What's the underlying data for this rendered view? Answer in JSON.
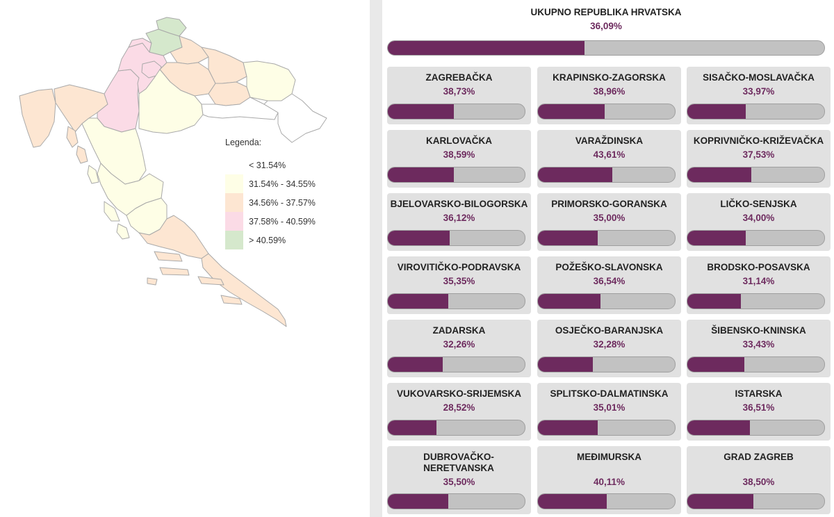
{
  "colors": {
    "accent": "#6d2a5e",
    "bar_track": "#c2c2c2",
    "card_bg": "#e1e1e1",
    "legend": [
      "#ffffff",
      "#fefee6",
      "#fde6d2",
      "#fbdbe6",
      "#d5e8cc"
    ]
  },
  "legend": {
    "title": "Legenda:",
    "items": [
      {
        "label": "< 31.54%",
        "color": "#ffffff"
      },
      {
        "label": "31.54% - 34.55%",
        "color": "#fefee6"
      },
      {
        "label": "34.56% - 37.57%",
        "color": "#fde6d2"
      },
      {
        "label": "37.58% - 40.59%",
        "color": "#fbdbe6"
      },
      {
        "label": "> 40.59%",
        "color": "#d5e8cc"
      }
    ]
  },
  "total": {
    "name": "UKUPNO REPUBLIKA HRVATSKA",
    "value": "36,09%",
    "percent": 36.09
  },
  "counties": [
    {
      "name": "ZAGREBAČKA",
      "value": "38,73%",
      "percent": 38.73
    },
    {
      "name": "KRAPINSKO-ZAGORSKA",
      "value": "38,96%",
      "percent": 38.96
    },
    {
      "name": "SISAČKO-MOSLAVAČKA",
      "value": "33,97%",
      "percent": 33.97
    },
    {
      "name": "KARLOVAČKA",
      "value": "38,59%",
      "percent": 38.59
    },
    {
      "name": "VARAŽDINSKA",
      "value": "43,61%",
      "percent": 43.61
    },
    {
      "name": "KOPRIVNIČKO-KRIŽEVAČKA",
      "value": "37,53%",
      "percent": 37.53
    },
    {
      "name": "BJELOVARSKO-BILOGORSKA",
      "value": "36,12%",
      "percent": 36.12
    },
    {
      "name": "PRIMORSKO-GORANSKA",
      "value": "35,00%",
      "percent": 35.0
    },
    {
      "name": "LIČKO-SENJSKA",
      "value": "34,00%",
      "percent": 34.0
    },
    {
      "name": "VIROVITIČKO-PODRAVSKA",
      "value": "35,35%",
      "percent": 35.35
    },
    {
      "name": "POŽEŠKO-SLAVONSKA",
      "value": "36,54%",
      "percent": 36.54
    },
    {
      "name": "BRODSKO-POSAVSKA",
      "value": "31,14%",
      "percent": 31.14
    },
    {
      "name": "ZADARSKA",
      "value": "32,26%",
      "percent": 32.26
    },
    {
      "name": "OSJEČKO-BARANJSKA",
      "value": "32,28%",
      "percent": 32.28
    },
    {
      "name": "ŠIBENSKO-KNINSKA",
      "value": "33,43%",
      "percent": 33.43
    },
    {
      "name": "VUKOVARSKO-SRIJEMSKA",
      "value": "28,52%",
      "percent": 28.52
    },
    {
      "name": "SPLITSKO-DALMATINSKA",
      "value": "35,01%",
      "percent": 35.01
    },
    {
      "name": "ISTARSKA",
      "value": "36,51%",
      "percent": 36.51
    },
    {
      "name": "DUBROVAČKO-NERETVANSKA",
      "value": "35,50%",
      "percent": 35.5
    },
    {
      "name": "MEĐIMURSKA",
      "value": "40,11%",
      "percent": 40.11
    },
    {
      "name": "GRAD ZAGREB",
      "value": "38,50%",
      "percent": 38.5
    }
  ]
}
